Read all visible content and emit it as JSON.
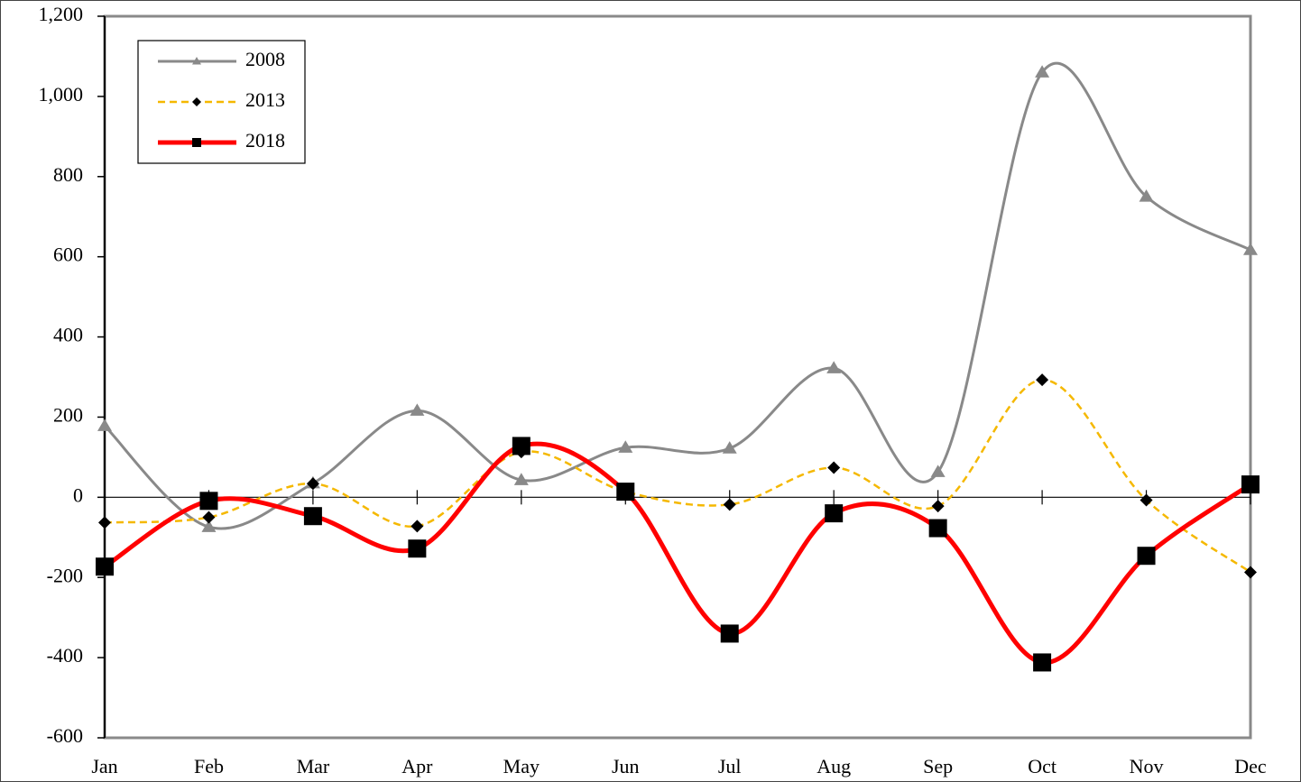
{
  "chart_data": {
    "type": "line",
    "categories": [
      "Jan",
      "Feb",
      "Mar",
      "Apr",
      "May",
      "Jun",
      "Jul",
      "Aug",
      "Sep",
      "Oct",
      "Nov",
      "Dec"
    ],
    "series": [
      {
        "name": "2008",
        "color": "#898989",
        "marker": "triangle",
        "values": [
          178,
          -74,
          35,
          216,
          43,
          124,
          122,
          322,
          63,
          1060,
          750,
          617
        ]
      },
      {
        "name": "2013",
        "color": "#f5b800",
        "marker": "diamond",
        "dashed": true,
        "values": [
          -63,
          -50,
          34,
          -72,
          113,
          14,
          -18,
          74,
          -22,
          293,
          -7,
          -187
        ]
      },
      {
        "name": "2018",
        "color": "#ff0000",
        "marker": "square",
        "values": [
          -173,
          -9,
          -47,
          -128,
          128,
          14,
          -340,
          -40,
          -77,
          -412,
          -146,
          32
        ]
      }
    ],
    "ylim": [
      -600,
      1200
    ],
    "yticks": [
      {
        "value": -600,
        "label": "-600"
      },
      {
        "value": -400,
        "label": "-400"
      },
      {
        "value": -200,
        "label": "-200"
      },
      0,
      200,
      400,
      600,
      800,
      {
        "value": 1000,
        "label": "1,000"
      },
      {
        "value": 1200,
        "label": "1,200"
      }
    ],
    "smooth": true,
    "grid": false,
    "legend": "top-left"
  }
}
